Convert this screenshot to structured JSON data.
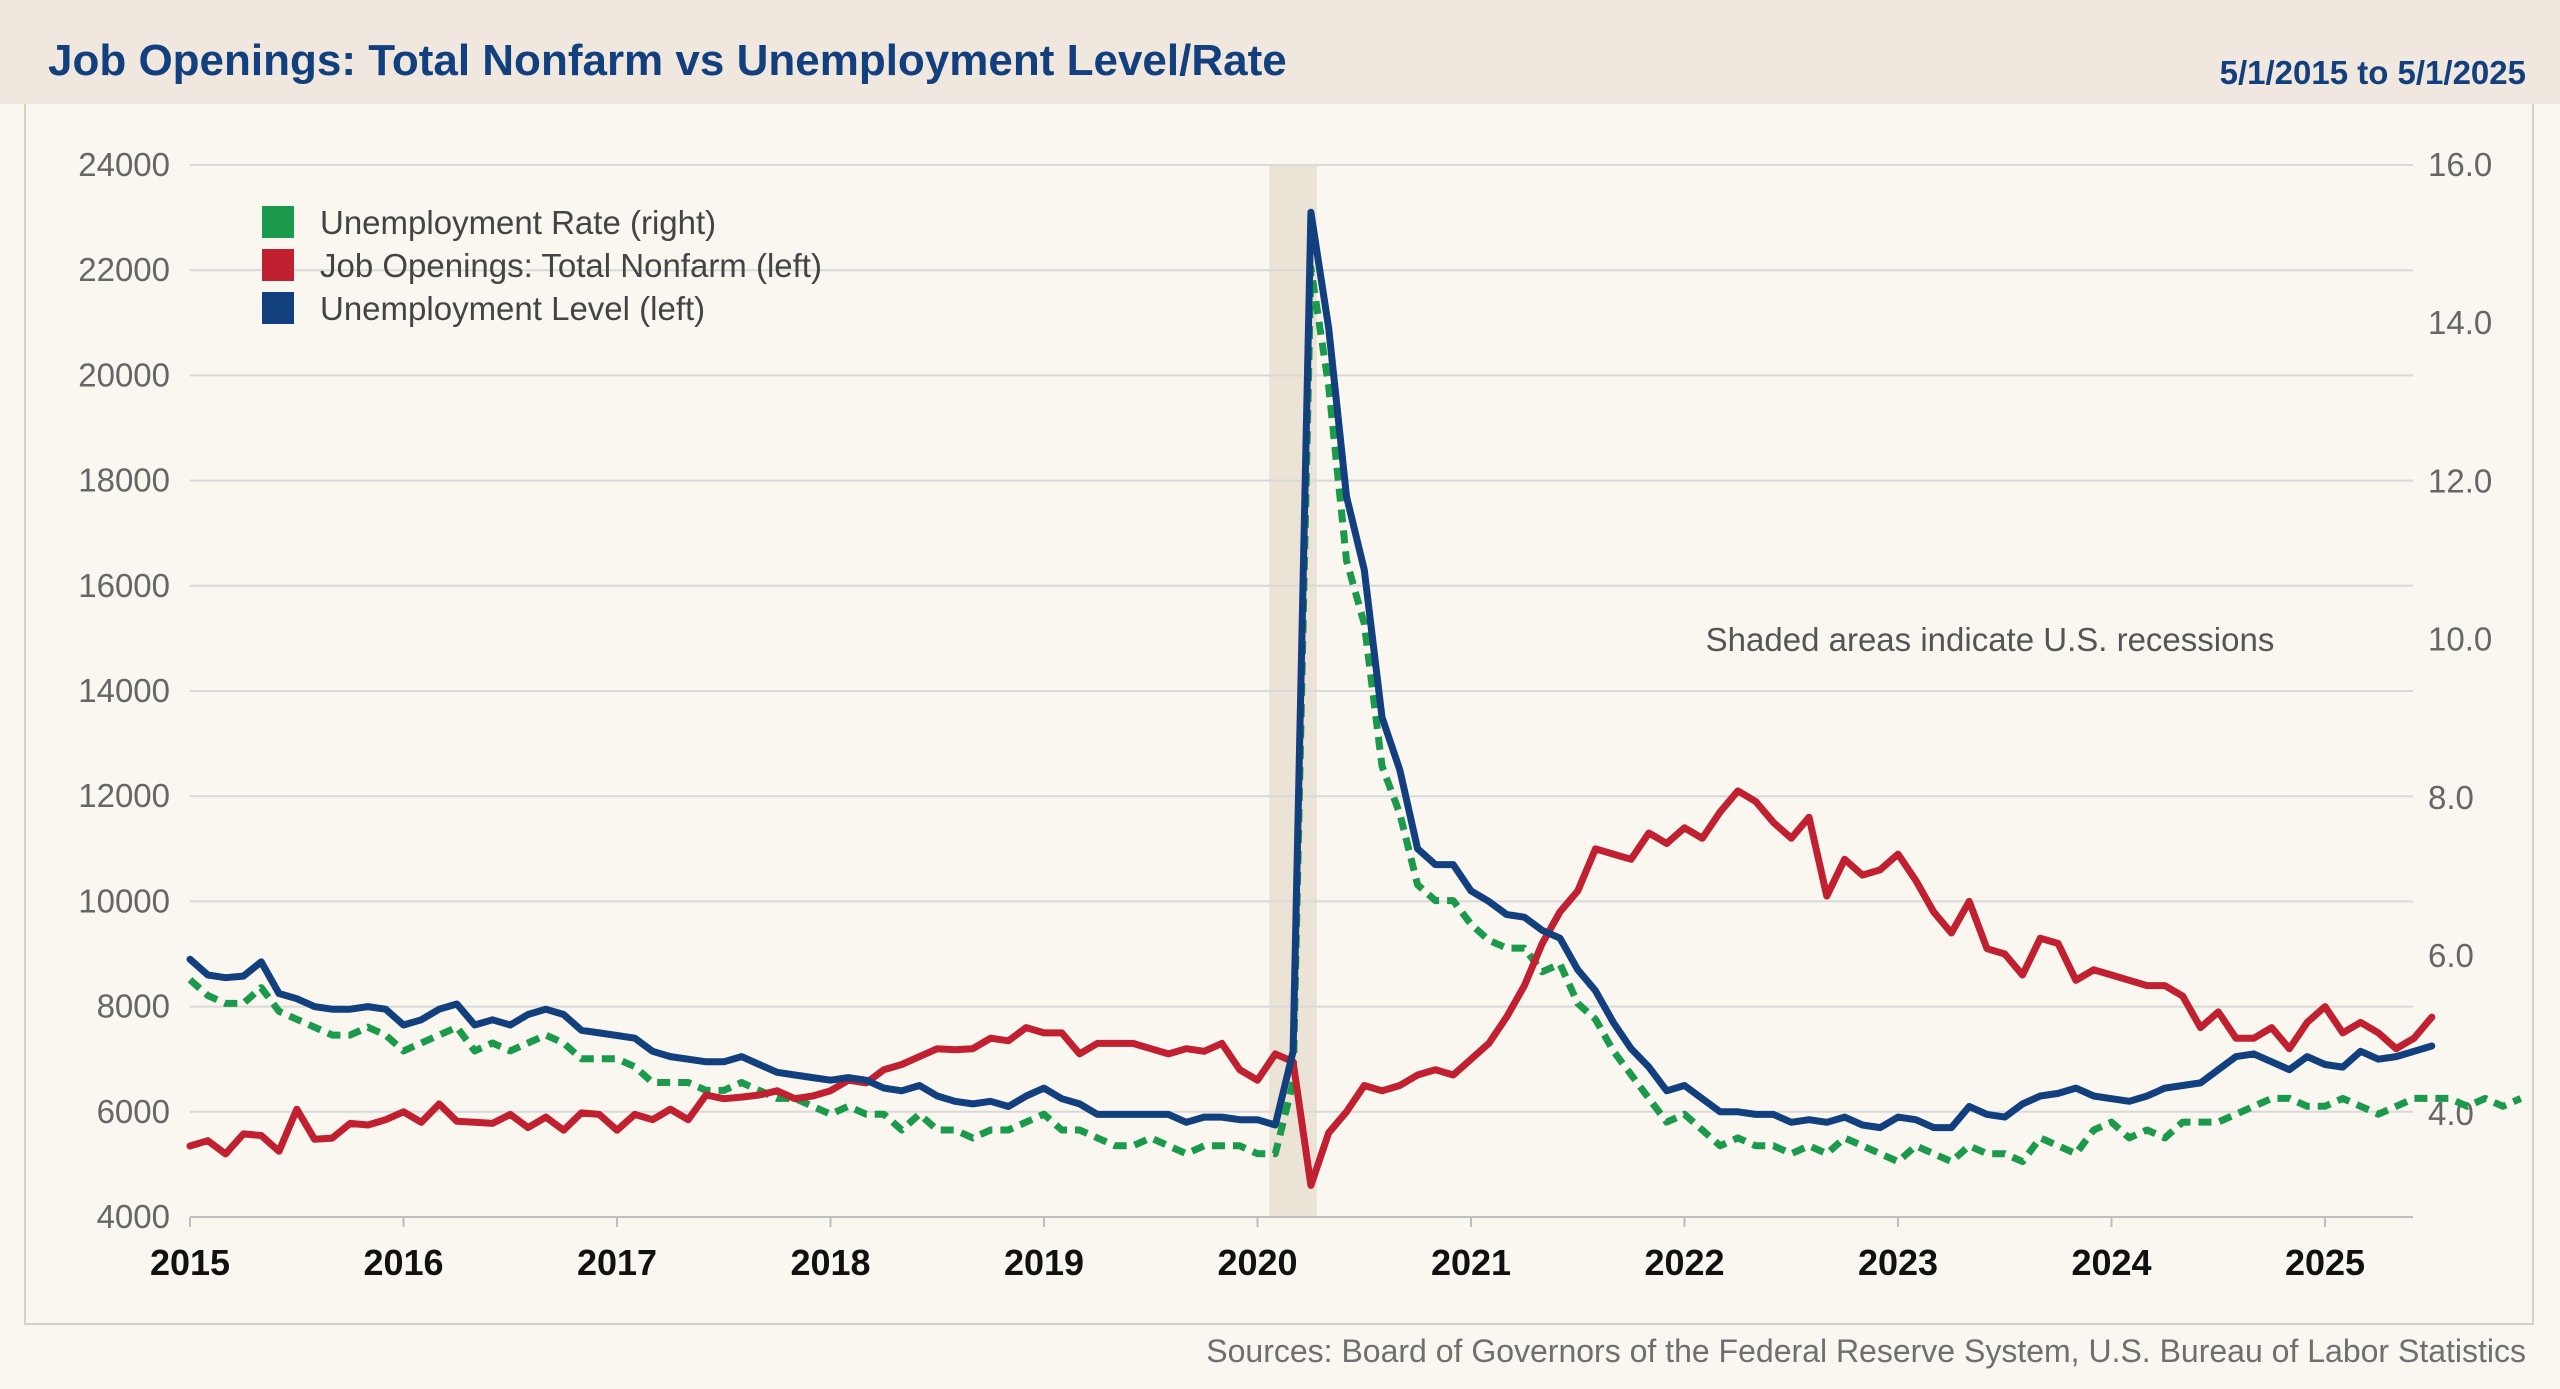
{
  "header": {
    "title": "Job Openings: Total Nonfarm vs Unemployment Level/Rate",
    "date_range": "5/1/2015 to 5/1/2025"
  },
  "footer": {
    "sources": "Sources: Board of Governors of the Federal Reserve System, U.S. Bureau of Labor Statistics"
  },
  "colors": {
    "background": "#faf6f0",
    "header_bg": "#f0e8de",
    "title": "#123f7d",
    "unemployment_rate": "#1a9a4a",
    "job_openings": "#c0202f",
    "unemployment_level": "#123f7d",
    "recession_shade": "#ece3d7",
    "grid": "#d9d9d9"
  },
  "chart_data": {
    "type": "line",
    "title": "Job Openings: Total Nonfarm vs Unemployment Level/Rate",
    "date_range": "5/1/2015 to 5/1/2025",
    "annotation": "Shaded areas indicate U.S. recessions",
    "recession_shading": [
      {
        "start": "2020-02",
        "end": "2020-04"
      }
    ],
    "x_start": "2015-01",
    "x_tick_labels": [
      "2015",
      "2016",
      "2017",
      "2018",
      "2019",
      "2020",
      "2021",
      "2022",
      "2023",
      "2024",
      "2025"
    ],
    "y_left": {
      "range": [
        4000,
        24000
      ],
      "tick_labels": [
        "4000",
        "6000",
        "8000",
        "10000",
        "12000",
        "14000",
        "16000",
        "18000",
        "20000",
        "22000",
        "24000"
      ]
    },
    "y_right": {
      "range": [
        2.7,
        16.0
      ],
      "tick_labels": [
        "4.0",
        "6.0",
        "8.0",
        "10.0",
        "12.0",
        "14.0",
        "16.0"
      ]
    },
    "grid": true,
    "legend_position": "top-left",
    "series": [
      {
        "name": "Unemployment Rate (right)",
        "axis": "right",
        "style": "dotted",
        "color_key": "unemployment_rate",
        "values": [
          5.7,
          5.5,
          5.4,
          5.4,
          5.6,
          5.3,
          5.2,
          5.1,
          5.0,
          5.0,
          5.1,
          5.0,
          4.8,
          4.9,
          5.0,
          5.1,
          4.8,
          4.9,
          4.8,
          4.9,
          5.0,
          4.9,
          4.7,
          4.7,
          4.7,
          4.6,
          4.4,
          4.4,
          4.4,
          4.3,
          4.3,
          4.4,
          4.3,
          4.2,
          4.2,
          4.1,
          4.0,
          4.1,
          4.0,
          4.0,
          3.8,
          4.0,
          3.8,
          3.8,
          3.7,
          3.8,
          3.8,
          3.9,
          4.0,
          3.8,
          3.8,
          3.7,
          3.6,
          3.6,
          3.7,
          3.6,
          3.5,
          3.6,
          3.6,
          3.6,
          3.5,
          3.5,
          4.4,
          14.7,
          13.2,
          11.0,
          10.2,
          8.4,
          7.8,
          6.9,
          6.7,
          6.7,
          6.4,
          6.2,
          6.1,
          6.1,
          5.8,
          5.9,
          5.4,
          5.2,
          4.8,
          4.5,
          4.2,
          3.9,
          4.0,
          3.8,
          3.6,
          3.7,
          3.6,
          3.6,
          3.5,
          3.6,
          3.5,
          3.7,
          3.6,
          3.5,
          3.4,
          3.6,
          3.5,
          3.4,
          3.6,
          3.5,
          3.5,
          3.4,
          3.7,
          3.6,
          3.5,
          3.8,
          3.9,
          3.7,
          3.8,
          3.7,
          3.9,
          3.9,
          3.9,
          4.0,
          4.1,
          4.2,
          4.2,
          4.1,
          4.1,
          4.2,
          4.1,
          4.0,
          4.1,
          4.2,
          4.2,
          4.2,
          4.1,
          4.2,
          4.1,
          4.2
        ]
      },
      {
        "name": "Job Openings: Total Nonfarm (left)",
        "axis": "left",
        "style": "solid",
        "color_key": "job_openings",
        "values": [
          5350,
          5450,
          5200,
          5580,
          5550,
          5250,
          6050,
          5480,
          5500,
          5780,
          5750,
          5850,
          6000,
          5800,
          6150,
          5820,
          5800,
          5780,
          5950,
          5700,
          5900,
          5650,
          5980,
          5950,
          5650,
          5950,
          5850,
          6050,
          5850,
          6320,
          6250,
          6280,
          6320,
          6400,
          6250,
          6300,
          6400,
          6600,
          6550,
          6800,
          6900,
          7050,
          7200,
          7180,
          7200,
          7400,
          7350,
          7600,
          7500,
          7500,
          7100,
          7300,
          7300,
          7300,
          7200,
          7100,
          7200,
          7150,
          7300,
          6800,
          6600,
          7100,
          6950,
          4600,
          5600,
          6000,
          6500,
          6400,
          6500,
          6700,
          6800,
          6700,
          7000,
          7300,
          7800,
          8400,
          9200,
          9800,
          10200,
          11000,
          10900,
          10800,
          11300,
          11100,
          11400,
          11200,
          11700,
          12100,
          11900,
          11500,
          11200,
          11600,
          10100,
          10800,
          10500,
          10600,
          10900,
          10400,
          9800,
          9400,
          10000,
          9100,
          9000,
          8600,
          9300,
          9200,
          8500,
          8700,
          8600,
          8500,
          8400,
          8400,
          8200,
          7600,
          7900,
          7400,
          7400,
          7600,
          7200,
          7700,
          8000,
          7500,
          7700,
          7500,
          7200,
          7400,
          7800
        ]
      },
      {
        "name": "Unemployment Level (left)",
        "axis": "left",
        "style": "solid",
        "color_key": "unemployment_level",
        "values": [
          8900,
          8600,
          8550,
          8580,
          8850,
          8250,
          8150,
          8000,
          7950,
          7950,
          8000,
          7950,
          7650,
          7750,
          7950,
          8050,
          7650,
          7750,
          7650,
          7850,
          7950,
          7850,
          7550,
          7500,
          7450,
          7400,
          7150,
          7050,
          7000,
          6950,
          6950,
          7050,
          6900,
          6750,
          6700,
          6650,
          6600,
          6650,
          6600,
          6450,
          6400,
          6500,
          6300,
          6200,
          6150,
          6200,
          6100,
          6300,
          6450,
          6250,
          6150,
          5950,
          5950,
          5950,
          5950,
          5950,
          5800,
          5900,
          5900,
          5850,
          5850,
          5750,
          7150,
          23100,
          20900,
          17700,
          16300,
          13500,
          12500,
          11000,
          10700,
          10700,
          10200,
          10000,
          9750,
          9700,
          9450,
          9300,
          8700,
          8300,
          7700,
          7200,
          6850,
          6400,
          6500,
          6250,
          6000,
          6000,
          5950,
          5950,
          5800,
          5850,
          5800,
          5900,
          5750,
          5700,
          5900,
          5850,
          5700,
          5700,
          6100,
          5950,
          5900,
          6150,
          6300,
          6350,
          6450,
          6300,
          6250,
          6200,
          6300,
          6450,
          6500,
          6550,
          6800,
          7050,
          7100,
          6950,
          6800,
          7050,
          6900,
          6850,
          7150,
          7000,
          7050,
          7150,
          7250
        ]
      }
    ]
  }
}
